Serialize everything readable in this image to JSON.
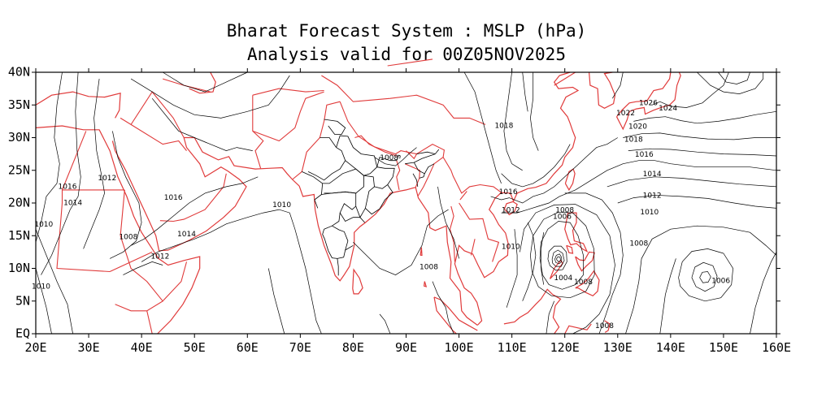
{
  "header": {
    "title": "Bharat Forecast System : MSLP (hPa)",
    "subtitle": "Analysis valid for 00Z05NOV2025"
  },
  "map": {
    "variable": "MSLP",
    "units": "hPa",
    "extent": {
      "lon": [
        20,
        160
      ],
      "lat": [
        0,
        40
      ]
    },
    "colors": {
      "coastline": "#e03a3a",
      "state_boundary": "#000000",
      "isobar": "#000000",
      "frame": "#000000",
      "background": "#ffffff"
    },
    "x_ticks": [
      "20E",
      "30E",
      "40E",
      "50E",
      "60E",
      "70E",
      "80E",
      "90E",
      "100E",
      "110E",
      "120E",
      "130E",
      "140E",
      "150E",
      "160E"
    ],
    "y_ticks": [
      "EQ",
      "5N",
      "10N",
      "15N",
      "20N",
      "25N",
      "30N",
      "35N",
      "40N"
    ],
    "isobar_labels": [
      {
        "text": "1016",
        "lon": 26.0,
        "lat": 22.5
      },
      {
        "text": "1014",
        "lon": 27.0,
        "lat": 20.0
      },
      {
        "text": "1012",
        "lon": 33.5,
        "lat": 23.8
      },
      {
        "text": "1010",
        "lon": 21.5,
        "lat": 16.7
      },
      {
        "text": "1010",
        "lon": 21.0,
        "lat": 7.2
      },
      {
        "text": "1008",
        "lon": 37.5,
        "lat": 14.8
      },
      {
        "text": "1012",
        "lon": 43.5,
        "lat": 11.8
      },
      {
        "text": "1016",
        "lon": 46.0,
        "lat": 20.8
      },
      {
        "text": "1014",
        "lon": 48.5,
        "lat": 15.2
      },
      {
        "text": "1010",
        "lon": 66.5,
        "lat": 19.7
      },
      {
        "text": "1008",
        "lon": 86.8,
        "lat": 26.9
      },
      {
        "text": "1008",
        "lon": 94.3,
        "lat": 10.2
      },
      {
        "text": "1018",
        "lon": 108.5,
        "lat": 31.8
      },
      {
        "text": "1016",
        "lon": 109.3,
        "lat": 21.7
      },
      {
        "text": "1012",
        "lon": 109.8,
        "lat": 18.9
      },
      {
        "text": "1010",
        "lon": 109.8,
        "lat": 13.3
      },
      {
        "text": "1008",
        "lon": 120.0,
        "lat": 18.9
      },
      {
        "text": "1006",
        "lon": 119.5,
        "lat": 17.9
      },
      {
        "text": "1004",
        "lon": 119.7,
        "lat": 8.5
      },
      {
        "text": "1008",
        "lon": 123.5,
        "lat": 7.9
      },
      {
        "text": "1008",
        "lon": 127.5,
        "lat": 1.2
      },
      {
        "text": "1026",
        "lon": 135.8,
        "lat": 35.3
      },
      {
        "text": "1024",
        "lon": 139.5,
        "lat": 34.5
      },
      {
        "text": "1022",
        "lon": 131.5,
        "lat": 33.7
      },
      {
        "text": "1020",
        "lon": 133.8,
        "lat": 31.7
      },
      {
        "text": "1018",
        "lon": 133.0,
        "lat": 29.7
      },
      {
        "text": "1016",
        "lon": 135.0,
        "lat": 27.4
      },
      {
        "text": "1014",
        "lon": 136.5,
        "lat": 24.4
      },
      {
        "text": "1012",
        "lon": 136.5,
        "lat": 21.1
      },
      {
        "text": "1010",
        "lon": 136.0,
        "lat": 18.6
      },
      {
        "text": "1008",
        "lon": 134.0,
        "lat": 13.8
      },
      {
        "text": "1006",
        "lon": 149.5,
        "lat": 8.1
      }
    ],
    "features": {
      "low_pressure_centers": [
        {
          "lon": 118.8,
          "lat": 11.4,
          "note": "intense cyclone"
        },
        {
          "lon": 146.5,
          "lat": 8.6
        }
      ],
      "high_pressure_centers": [
        {
          "lon": 152.5,
          "lat": 37.5
        }
      ]
    }
  }
}
